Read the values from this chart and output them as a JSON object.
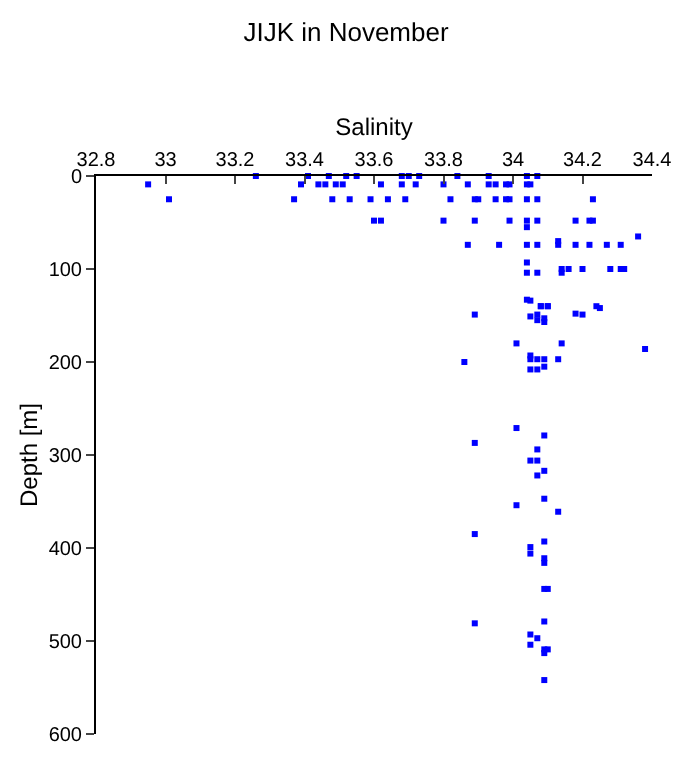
{
  "chart_data": {
    "type": "scatter",
    "title": "JIJK in November",
    "xlabel": "Salinity",
    "ylabel": "Depth [m]",
    "xlim": [
      32.8,
      34.4
    ],
    "xticks": [
      32.8,
      33,
      33.2,
      33.4,
      33.6,
      33.8,
      34,
      34.2,
      34.4
    ],
    "ylim": [
      600,
      0
    ],
    "yticks": [
      0,
      100,
      200,
      300,
      400,
      500,
      600
    ],
    "marker": "square",
    "series": [
      {
        "color": "#0000ff",
        "x": [
          33.26,
          33.41,
          33.47,
          33.52,
          33.55,
          33.68,
          33.7,
          33.73,
          33.84,
          33.93,
          34.04,
          34.07,
          32.95,
          33.39,
          33.44,
          33.46,
          33.49,
          33.51,
          33.62,
          33.68,
          33.72,
          33.8,
          33.87,
          33.93,
          33.95,
          33.98,
          33.99,
          34.04,
          34.05,
          33.01,
          33.37,
          33.48,
          33.53,
          33.59,
          33.64,
          33.69,
          33.82,
          33.89,
          33.9,
          33.95,
          33.98,
          33.99,
          34.04,
          34.07,
          34.23,
          33.6,
          33.62,
          33.8,
          33.89,
          33.99,
          34.04,
          34.07,
          34.18,
          34.22,
          34.23,
          34.04,
          34.36,
          33.87,
          33.96,
          34.04,
          34.07,
          34.13,
          34.18,
          34.22,
          34.27,
          34.31,
          34.13,
          34.04,
          34.14,
          34.16,
          34.2,
          34.28,
          34.31,
          34.32,
          34.04,
          34.07,
          34.14,
          34.04,
          34.08,
          34.1,
          34.24,
          34.05,
          34.08,
          34.1,
          34.25,
          33.89,
          34.18,
          34.2,
          34.05,
          34.07,
          34.07,
          34.09,
          34.09,
          34.01,
          34.14,
          34.38,
          34.05,
          34.05,
          34.07,
          34.09,
          34.13,
          33.86,
          34.09,
          34.05,
          34.07,
          34.01,
          34.09,
          33.89,
          34.07,
          34.05,
          34.07,
          34.09,
          34.07,
          34.09,
          34.01,
          34.13,
          33.89,
          34.09,
          34.05,
          34.05,
          34.09,
          34.09,
          34.09,
          34.1,
          33.89,
          34.09,
          34.05,
          34.07,
          34.05,
          34.09,
          34.1,
          34.09,
          34.09
        ],
        "values": [
          0,
          0,
          0,
          0,
          0,
          0,
          0,
          0,
          0,
          0,
          0,
          0,
          9,
          9,
          9,
          9,
          9,
          9,
          9,
          9,
          9,
          9,
          9,
          9,
          9,
          9,
          9,
          9,
          9,
          25,
          25,
          25,
          25,
          25,
          25,
          25,
          25,
          25,
          25,
          25,
          25,
          25,
          25,
          25,
          25,
          48,
          48,
          48,
          48,
          48,
          48,
          48,
          48,
          48,
          48,
          55,
          65,
          74,
          74,
          74,
          74,
          74,
          74,
          74,
          74,
          74,
          70,
          93,
          100,
          100,
          100,
          100,
          100,
          100,
          104,
          104,
          104,
          133,
          140,
          140,
          140,
          134,
          140,
          140,
          142,
          149,
          148,
          149,
          151,
          149,
          155,
          153,
          157,
          180,
          180,
          186,
          193,
          197,
          197,
          197,
          197,
          200,
          205,
          208,
          208,
          271,
          279,
          287,
          294,
          306,
          306,
          317,
          322,
          347,
          354,
          361,
          385,
          393,
          399,
          406,
          411,
          416,
          444,
          444,
          481,
          479,
          493,
          497,
          504,
          509,
          509,
          513,
          542
        ]
      }
    ]
  }
}
